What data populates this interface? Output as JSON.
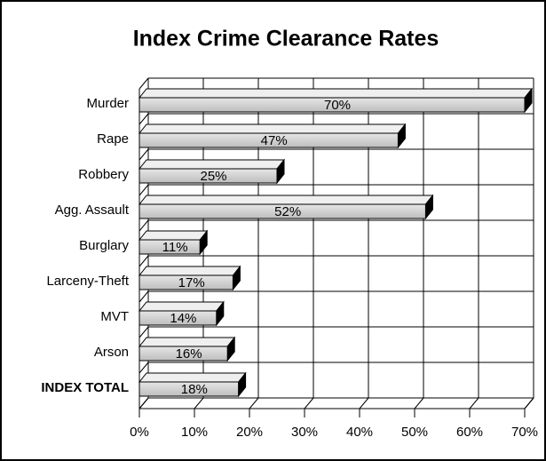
{
  "chart_data": {
    "type": "bar",
    "orientation": "horizontal",
    "title": "Index Crime Clearance Rates",
    "categories": [
      "Murder",
      "Rape",
      "Robbery",
      "Agg. Assault",
      "Burglary",
      "Larceny-Theft",
      "MVT",
      "Arson",
      "INDEX TOTAL"
    ],
    "values": [
      70,
      47,
      25,
      52,
      11,
      17,
      14,
      16,
      18
    ],
    "value_labels": [
      "70%",
      "47%",
      "25%",
      "52%",
      "11%",
      "17%",
      "14%",
      "16%",
      "18%"
    ],
    "color": "#d4d4d4",
    "xlim": [
      0,
      70
    ],
    "xticks": [
      {
        "value": 0,
        "label": "0%"
      },
      {
        "value": 10,
        "label": "10%"
      },
      {
        "value": 20,
        "label": "20%"
      },
      {
        "value": 30,
        "label": "30%"
      },
      {
        "value": 40,
        "label": "40%"
      },
      {
        "value": 50,
        "label": "50%"
      },
      {
        "value": 60,
        "label": "60%"
      },
      {
        "value": 70,
        "label": "70%"
      }
    ],
    "grid": true
  }
}
